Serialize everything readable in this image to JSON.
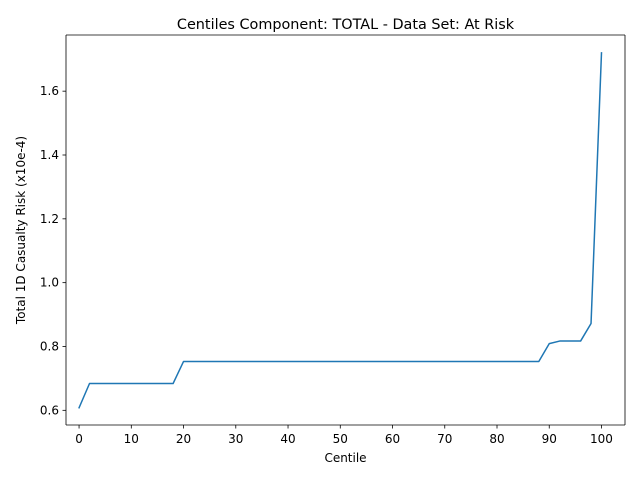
{
  "chart_data": {
    "type": "line",
    "title": "Centiles Component: TOTAL - Data Set: At Risk",
    "xlabel": "Centile",
    "ylabel": "Total 1D Casualty Risk (x10e-4)",
    "xlim": [
      -2.5,
      104.5
    ],
    "ylim": [
      0.554,
      1.776
    ],
    "xticks": [
      0,
      10,
      20,
      30,
      40,
      50,
      60,
      70,
      80,
      90,
      100
    ],
    "yticks": [
      0.6,
      0.8,
      1.0,
      1.2,
      1.4,
      1.6
    ],
    "ytick_labels": [
      "0.6",
      "0.8",
      "1.0",
      "1.2",
      "1.4",
      "1.6"
    ],
    "grid": false,
    "series": [
      {
        "color": "#1f77b4",
        "x": [
          0,
          2,
          18,
          20,
          88,
          90,
          92,
          96,
          98,
          100
        ],
        "y": [
          0.608,
          0.684,
          0.684,
          0.753,
          0.753,
          0.809,
          0.817,
          0.817,
          0.872,
          1.72
        ]
      }
    ]
  }
}
